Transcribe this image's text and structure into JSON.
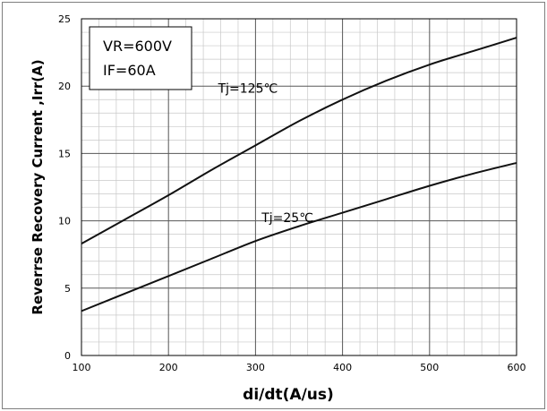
{
  "chart_data": {
    "type": "line",
    "xlabel": "di/dt(A/us)",
    "ylabel": "Reverrse Recovery Current ,Irr(A)",
    "xlim": [
      100,
      600
    ],
    "ylim": [
      0,
      25
    ],
    "x_ticks": [
      "100",
      "200",
      "300",
      "400",
      "500",
      "600"
    ],
    "y_ticks": [
      "0",
      "5",
      "10",
      "15",
      "20",
      "25"
    ],
    "grid": true,
    "conditions": [
      "VR=600V",
      "IF=60A"
    ],
    "series": [
      {
        "name": "Tj=125℃",
        "x": [
          100,
          150,
          200,
          250,
          300,
          350,
          400,
          450,
          500,
          550,
          600
        ],
        "values": [
          8.3,
          10.1,
          11.9,
          13.8,
          15.6,
          17.4,
          19.0,
          20.4,
          21.6,
          22.6,
          23.6
        ]
      },
      {
        "name": "Tj=25℃",
        "x": [
          100,
          150,
          200,
          250,
          300,
          350,
          400,
          450,
          500,
          550,
          600
        ],
        "values": [
          3.3,
          4.6,
          5.9,
          7.2,
          8.5,
          9.6,
          10.6,
          11.6,
          12.6,
          13.5,
          14.3
        ]
      }
    ]
  }
}
